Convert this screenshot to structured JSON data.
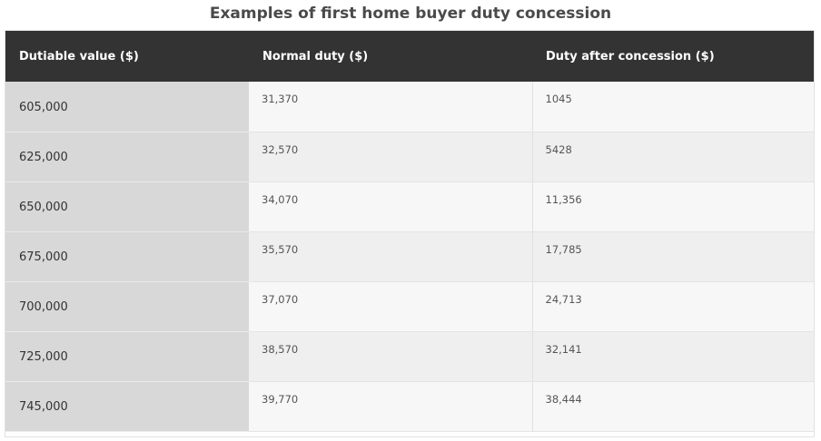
{
  "title": "Examples of first home buyer duty concession",
  "table": {
    "headers": [
      "Dutiable value ($)",
      "Normal duty ($)",
      "Duty after concession ($)"
    ],
    "rows": [
      [
        "605,000",
        "31,370",
        "1045"
      ],
      [
        "625,000",
        "32,570",
        "5428"
      ],
      [
        "650,000",
        "34,070",
        "11,356"
      ],
      [
        "675,000",
        "35,570",
        "17,785"
      ],
      [
        "700,000",
        "37,070",
        "24,713"
      ],
      [
        "725,000",
        "38,570",
        "32,141"
      ],
      [
        "745,000",
        "39,770",
        "38,444"
      ]
    ]
  },
  "colors": {
    "header_bg": "#333333",
    "header_text": "#ffffff",
    "first_col_bg": "#d8d8d8",
    "row_odd_bg": "#f7f7f7",
    "row_even_bg": "#efefef",
    "title_text": "#4a4a4a"
  }
}
